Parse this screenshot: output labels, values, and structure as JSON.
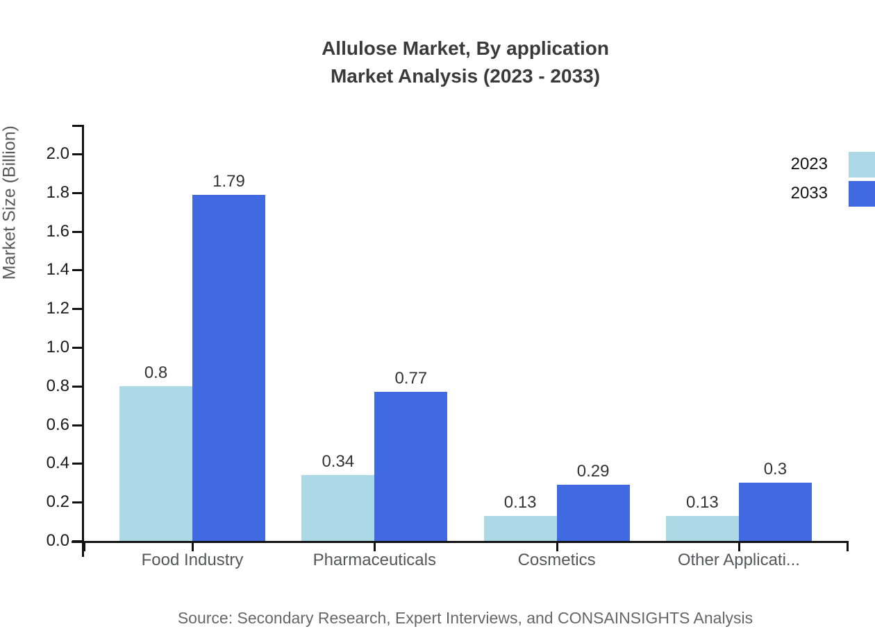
{
  "chart_data": {
    "type": "bar",
    "title": "Allulose Market, By application",
    "subtitle": "Market Analysis (2023 - 2033)",
    "ylabel": "Market Size (Billion)",
    "xlabel": "",
    "ylim": [
      0,
      2.0
    ],
    "yticks": [
      "0.0",
      "0.2",
      "0.4",
      "0.6",
      "0.8",
      "1.0",
      "1.2",
      "1.4",
      "1.6",
      "1.8",
      "2.0"
    ],
    "categories": [
      "Food Industry",
      "Pharmaceuticals",
      "Cosmetics",
      "Other Applicati..."
    ],
    "series": [
      {
        "name": "2023",
        "color": "#ADD8E6",
        "values": [
          0.8,
          0.34,
          0.13,
          0.13
        ],
        "labels": [
          "0.8",
          "0.34",
          "0.13",
          "0.13"
        ]
      },
      {
        "name": "2033",
        "color": "#4169E1",
        "values": [
          1.79,
          0.77,
          0.29,
          0.3
        ],
        "labels": [
          "1.79",
          "0.77",
          "0.29",
          "0.3"
        ]
      }
    ],
    "legend_position": "top-right",
    "grid": false
  },
  "source": {
    "text": "Source: Secondary Research, Expert Interviews, and CONSAINSIGHTS Analysis"
  },
  "colors": {
    "series_2023": "#ADD8E6",
    "series_2033": "#4169E1",
    "title_text": "#3A3A3A",
    "axis_text": "#1A1A1A",
    "category_text": "#55565A",
    "muted_text": "#666666",
    "axis_line": "#111111"
  }
}
